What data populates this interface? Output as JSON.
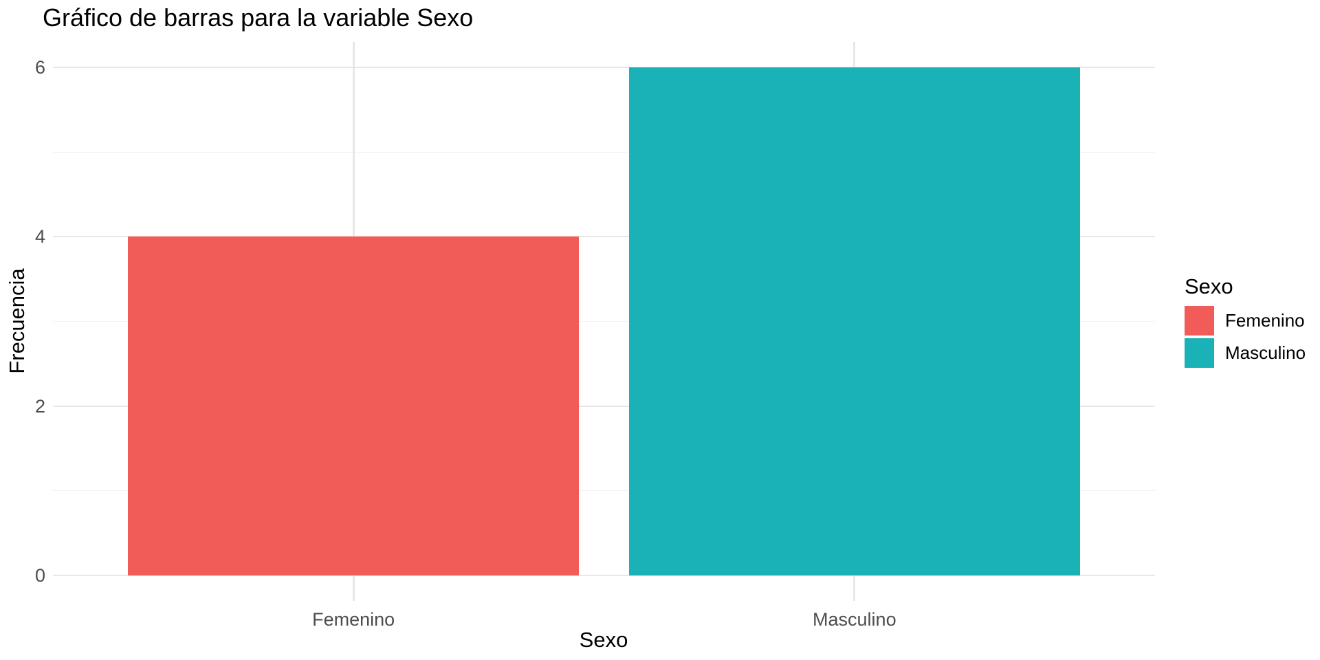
{
  "chart_data": {
    "type": "bar",
    "title": "Gráfico de barras para la variable Sexo",
    "xlabel": "Sexo",
    "ylabel": "Frecuencia",
    "categories": [
      "Femenino",
      "Masculino"
    ],
    "values": [
      4,
      6
    ],
    "bar_colors": [
      "#F25C58",
      "#1AB2B7"
    ],
    "ylim": [
      0,
      6
    ],
    "yticks_major": [
      0,
      2,
      4,
      6
    ],
    "yticks_minor": [
      1,
      3,
      5
    ],
    "grid": {
      "horizontal": "major+minor",
      "vertical": "category-centers",
      "on": true
    },
    "legend": {
      "title": "Sexo",
      "position": "right",
      "entries": [
        {
          "label": "Femenino",
          "color": "#F25C58"
        },
        {
          "label": "Masculino",
          "color": "#1AB2B7"
        }
      ]
    },
    "colors": {
      "background": "#FFFFFF",
      "grid_major": "#E7E7E7",
      "grid_minor": "#F2F2F2",
      "axis_text": "#4D4D4D",
      "title_text": "#000000"
    }
  }
}
